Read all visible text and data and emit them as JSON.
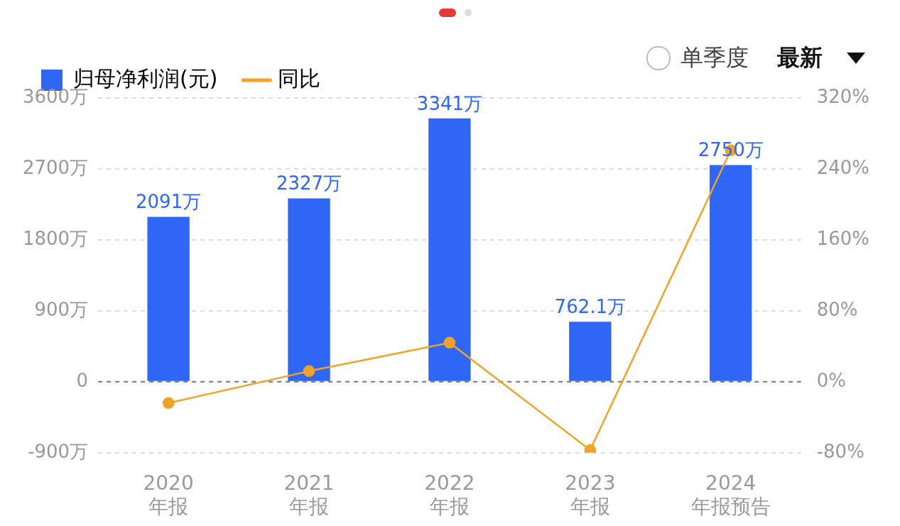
{
  "chart_data": {
    "type": "bar",
    "categories": [
      "2020\n年报",
      "2021\n年报",
      "2022\n年报",
      "2023\n年报",
      "2024\n年报预告"
    ],
    "series": [
      {
        "name": "归母净利润(元)",
        "color": "#2f66f6",
        "values": [
          2091,
          2327,
          3341,
          762.1,
          2750
        ],
        "value_labels": [
          "2091万",
          "2327万",
          "3341万",
          "762.1万",
          "2750万"
        ]
      },
      {
        "name": "同比",
        "type": "line",
        "axis": "y2",
        "color": "#f0a324",
        "values": [
          -24,
          12,
          44,
          -77,
          261
        ]
      }
    ],
    "ylim": [
      -900,
      3600
    ],
    "yticks": [
      {
        "value": -900,
        "label": "-900万"
      },
      {
        "value": 0,
        "label": "0"
      },
      {
        "value": 900,
        "label": "900万"
      },
      {
        "value": 1800,
        "label": "1800万"
      },
      {
        "value": 2700,
        "label": "2700万"
      },
      {
        "value": 3600,
        "label": "3600万"
      }
    ],
    "y2lim": [
      -80,
      320
    ],
    "y2ticks": [
      {
        "value": -80,
        "label": "-80%"
      },
      {
        "value": 0,
        "label": "0%"
      },
      {
        "value": 80,
        "label": "80%"
      },
      {
        "value": 160,
        "label": "160%"
      },
      {
        "value": 240,
        "label": "240%"
      },
      {
        "value": 320,
        "label": "320%"
      }
    ],
    "grid": "y",
    "legend": "top left",
    "ref_lines": [
      {
        "axis": "y",
        "value": 0,
        "color": "#777777",
        "line_style": "dashed"
      }
    ],
    "marker": "circle",
    "annotations": [
      "单季度",
      "最新"
    ]
  }
}
